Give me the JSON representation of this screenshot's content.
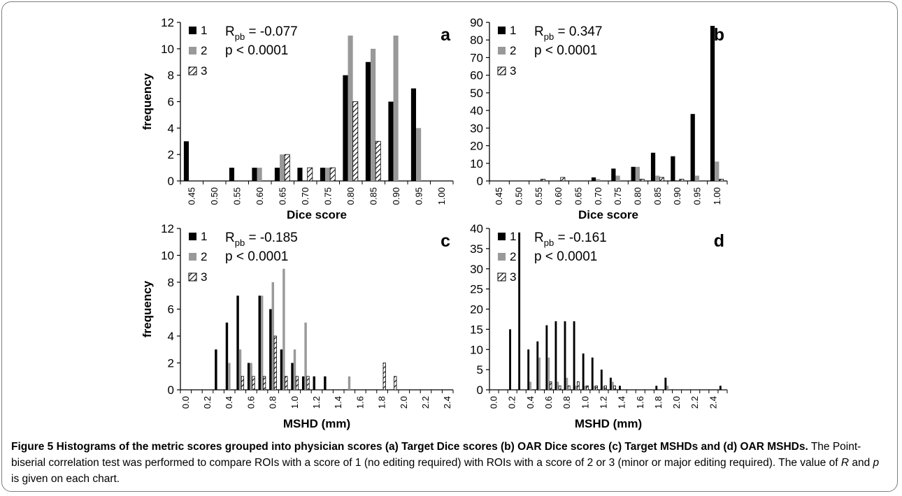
{
  "chart_data": [
    {
      "type": "bar",
      "panel_label": "a",
      "categories": [
        "0.45",
        "0.50",
        "0.55",
        "0.60",
        "0.65",
        "0.70",
        "0.75",
        "0.80",
        "0.85",
        "0.90",
        "0.95",
        "1.00"
      ],
      "series": [
        {
          "name": "1",
          "values": [
            3,
            0,
            1,
            1,
            1,
            1,
            1,
            8,
            9,
            6,
            7,
            0
          ]
        },
        {
          "name": "2",
          "values": [
            0,
            0,
            0,
            1,
            2,
            0,
            1,
            11,
            10,
            11,
            4,
            0
          ]
        },
        {
          "name": "3",
          "values": [
            0,
            0,
            0,
            0,
            2,
            1,
            1,
            6,
            3,
            0,
            0,
            0
          ]
        }
      ],
      "ylim": [
        0,
        12
      ],
      "yticks": [
        "0",
        "2",
        "4",
        "6",
        "8",
        "10",
        "12"
      ],
      "xlabel": "Dice score",
      "ylabel": "frequency",
      "r_text": "R",
      "r_sub": "pb",
      "r_value": " = -0.077",
      "p_text": "p < 0.0001",
      "legend_position": "top-left"
    },
    {
      "type": "bar",
      "panel_label": "b",
      "categories": [
        "0.45",
        "0.50",
        "0.55",
        "0.60",
        "0.65",
        "0.70",
        "0.75",
        "0.80",
        "0.85",
        "0.90",
        "0.95",
        "1.00"
      ],
      "series": [
        {
          "name": "1",
          "values": [
            0,
            0,
            0,
            0,
            0,
            2,
            7,
            8,
            16,
            14,
            38,
            88
          ]
        },
        {
          "name": "2",
          "values": [
            0,
            0,
            0,
            0,
            0,
            1,
            3,
            8,
            3,
            0,
            3,
            11
          ]
        },
        {
          "name": "3",
          "values": [
            0,
            0,
            1,
            2,
            0,
            0,
            0,
            1,
            2,
            1,
            0,
            1
          ]
        }
      ],
      "ylim": [
        0,
        90
      ],
      "yticks": [
        "0",
        "10",
        "20",
        "30",
        "40",
        "50",
        "60",
        "70",
        "80",
        "90"
      ],
      "xlabel": "Dice score",
      "ylabel": "",
      "r_text": "R",
      "r_sub": "pb",
      "r_value": " = 0.347",
      "p_text": "p < 0.0001",
      "legend_position": "top-left"
    },
    {
      "type": "bar",
      "panel_label": "c",
      "categories": [
        "0.0",
        "0.1",
        "0.2",
        "0.3",
        "0.4",
        "0.5",
        "0.6",
        "0.7",
        "0.8",
        "0.9",
        "1.0",
        "1.1",
        "1.2",
        "1.3",
        "1.4",
        "1.5",
        "1.6",
        "1.7",
        "1.8",
        "1.9",
        "2.0",
        "2.1",
        "2.2",
        "2.3",
        "2.4"
      ],
      "series": [
        {
          "name": "1",
          "values": [
            0,
            0,
            0,
            3,
            5,
            7,
            2,
            7,
            6,
            3,
            2,
            1,
            1,
            1,
            0,
            0,
            0,
            0,
            0,
            0,
            0,
            0,
            0,
            0,
            0
          ]
        },
        {
          "name": "2",
          "values": [
            0,
            0,
            0,
            0,
            2,
            3,
            2,
            7,
            8,
            9,
            3,
            5,
            0,
            0,
            0,
            1,
            0,
            0,
            0,
            0,
            0,
            0,
            0,
            0,
            0
          ]
        },
        {
          "name": "3",
          "values": [
            0,
            0,
            0,
            0,
            0,
            1,
            1,
            1,
            4,
            1,
            1,
            1,
            0,
            0,
            0,
            0,
            0,
            0,
            2,
            1,
            0,
            0,
            0,
            0,
            0
          ]
        }
      ],
      "ylim": [
        0,
        12
      ],
      "yticks": [
        "0",
        "2",
        "4",
        "6",
        "8",
        "10",
        "12"
      ],
      "xticklabels": [
        "0.0",
        "0.2",
        "0.4",
        "0.6",
        "0.8",
        "1.0",
        "1.2",
        "1.4",
        "1.6",
        "1.8",
        "2.0",
        "2.2",
        "2.4"
      ],
      "xlabel": "MSHD (mm)",
      "ylabel": "frequency",
      "r_text": "R",
      "r_sub": "pb",
      "r_value": " = -0.185",
      "p_text": "p < 0.0001",
      "legend_position": "top-left"
    },
    {
      "type": "bar",
      "panel_label": "d",
      "categories": [
        "0.0",
        "0.1",
        "0.2",
        "0.3",
        "0.4",
        "0.5",
        "0.6",
        "0.7",
        "0.8",
        "0.9",
        "1.0",
        "1.1",
        "1.2",
        "1.3",
        "1.4",
        "1.5",
        "1.6",
        "1.7",
        "1.8",
        "1.9",
        "2.0",
        "2.1",
        "2.2",
        "2.3",
        "2.4",
        "2.5"
      ],
      "series": [
        {
          "name": "1",
          "values": [
            0,
            0,
            15,
            39,
            10,
            12,
            16,
            17,
            17,
            17,
            9,
            8,
            5,
            3,
            1,
            0,
            0,
            0,
            1,
            3,
            0,
            0,
            0,
            0,
            0,
            1
          ]
        },
        {
          "name": "2",
          "values": [
            0,
            0,
            0,
            0,
            2,
            8,
            8,
            2,
            3,
            1,
            1,
            1,
            1,
            2,
            0,
            0,
            0,
            0,
            0,
            1,
            0,
            0,
            0,
            0,
            0,
            0
          ]
        },
        {
          "name": "3",
          "values": [
            0,
            0,
            0,
            0,
            0,
            0,
            2,
            1,
            1,
            2,
            1,
            1,
            1,
            1,
            0,
            0,
            0,
            0,
            0,
            0,
            0,
            0,
            0,
            0,
            0,
            0
          ]
        }
      ],
      "ylim": [
        0,
        40
      ],
      "yticks": [
        "0",
        "5",
        "10",
        "15",
        "20",
        "25",
        "30",
        "35",
        "40"
      ],
      "xticklabels": [
        "0.0",
        "0.2",
        "0.4",
        "0.6",
        "0.8",
        "1.0",
        "1.2",
        "1.4",
        "1.6",
        "1.8",
        "2.0",
        "2.2",
        "2.4"
      ],
      "xlabel": "MSHD (mm)",
      "ylabel": "",
      "r_text": "R",
      "r_sub": "pb",
      "r_value": " = -0.161",
      "p_text": "p < 0.0001",
      "legend_position": "top-left"
    }
  ],
  "caption": {
    "bold": "Figure 5 Histograms of the metric scores grouped into physician scores (a) Target Dice scores (b) OAR Dice scores (c) Target MSHDs and (d) OAR MSHDs.",
    "text1": " The Point-biserial correlation test was performed to compare ROIs with a score of 1 (no editing required) with ROIs with a score of 2 or 3 (minor or major editing required). The value of ",
    "r": "R",
    "text2": " and ",
    "p": "p",
    "text3": " is given on each chart."
  },
  "colors": {
    "series1": "#000000",
    "series2": "#999999",
    "series3": "#ffffff",
    "axis": "#000000",
    "frame": "#7f7f7f"
  }
}
